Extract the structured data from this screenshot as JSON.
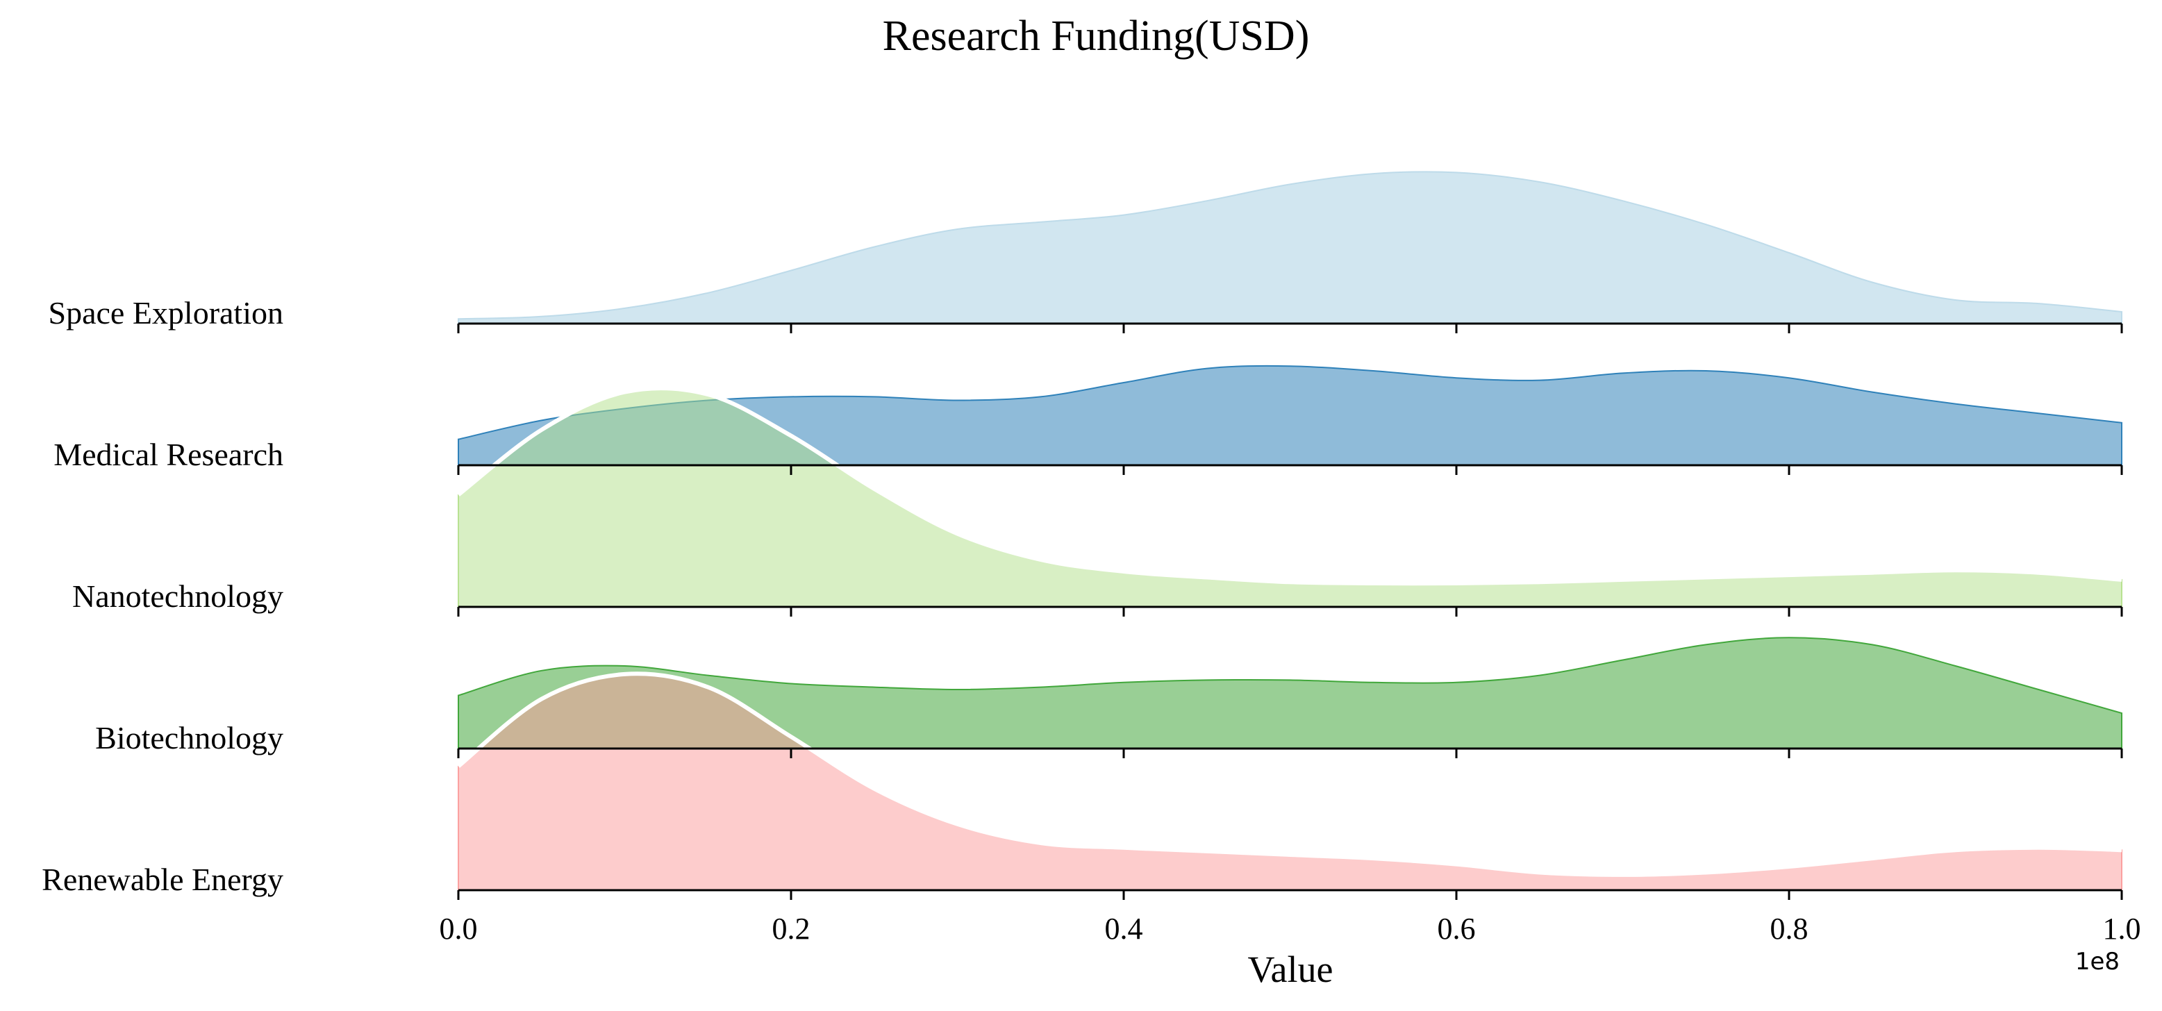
{
  "chart_data": {
    "type": "ridgeline",
    "title": "Research Funding(USD)",
    "xlabel": "Value",
    "xlim": [
      0,
      100000000
    ],
    "x_offset_label": "1e8",
    "xticks": [
      0,
      20000000,
      40000000,
      60000000,
      80000000,
      100000000
    ],
    "xtick_labels": [
      "0.0",
      "0.2",
      "0.4",
      "0.6",
      "0.8",
      "1.0"
    ],
    "categories": [
      "Space Exploration",
      "Medical Research",
      "Nanotechnology",
      "Biotechnology",
      "Renewable Energy"
    ],
    "x_values": [
      0,
      5000000,
      10000000,
      15000000,
      20000000,
      25000000,
      30000000,
      35000000,
      40000000,
      45000000,
      50000000,
      55000000,
      60000000,
      65000000,
      70000000,
      75000000,
      80000000,
      85000000,
      90000000,
      95000000,
      100000000
    ],
    "series": [
      {
        "name": "Space Exploration",
        "color": "#b9d8e8",
        "opacity": 0.65,
        "outline": false,
        "density": [
          0.04,
          0.06,
          0.13,
          0.26,
          0.45,
          0.65,
          0.8,
          0.86,
          0.92,
          1.04,
          1.18,
          1.27,
          1.28,
          1.2,
          1.04,
          0.84,
          0.6,
          0.35,
          0.2,
          0.17,
          0.1
        ]
      },
      {
        "name": "Medical Research",
        "color": "#1f78b4",
        "opacity": 0.5,
        "outline": false,
        "density": [
          0.22,
          0.38,
          0.48,
          0.55,
          0.58,
          0.58,
          0.55,
          0.58,
          0.7,
          0.82,
          0.84,
          0.8,
          0.74,
          0.72,
          0.78,
          0.8,
          0.74,
          0.62,
          0.52,
          0.44,
          0.36
        ]
      },
      {
        "name": "Nanotechnology",
        "color": "#b2df8a",
        "opacity": 0.5,
        "outline": true,
        "density": [
          0.95,
          1.5,
          1.82,
          1.8,
          1.45,
          1.0,
          0.62,
          0.4,
          0.3,
          0.25,
          0.21,
          0.2,
          0.2,
          0.21,
          0.23,
          0.25,
          0.27,
          0.29,
          0.31,
          0.29,
          0.23
        ]
      },
      {
        "name": "Biotechnology",
        "color": "#33a02c",
        "opacity": 0.5,
        "outline": false,
        "density": [
          0.45,
          0.66,
          0.7,
          0.62,
          0.55,
          0.52,
          0.5,
          0.52,
          0.56,
          0.58,
          0.58,
          0.56,
          0.56,
          0.62,
          0.75,
          0.88,
          0.94,
          0.88,
          0.7,
          0.5,
          0.3
        ]
      },
      {
        "name": "Renewable Energy",
        "color": "#fb9a99",
        "opacity": 0.5,
        "outline": true,
        "density": [
          1.05,
          1.62,
          1.83,
          1.72,
          1.3,
          0.86,
          0.56,
          0.4,
          0.36,
          0.33,
          0.3,
          0.27,
          0.22,
          0.15,
          0.13,
          0.15,
          0.2,
          0.27,
          0.34,
          0.36,
          0.34
        ]
      }
    ],
    "grid": false,
    "legend": "none"
  }
}
